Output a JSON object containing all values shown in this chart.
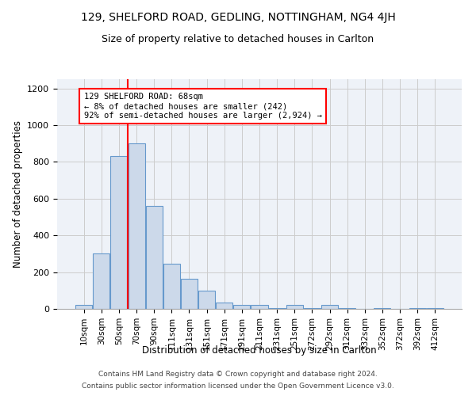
{
  "title1": "129, SHELFORD ROAD, GEDLING, NOTTINGHAM, NG4 4JH",
  "title2": "Size of property relative to detached houses in Carlton",
  "xlabel": "Distribution of detached houses by size in Carlton",
  "ylabel": "Number of detached properties",
  "bar_labels": [
    "10sqm",
    "30sqm",
    "50sqm",
    "70sqm",
    "90sqm",
    "111sqm",
    "131sqm",
    "151sqm",
    "171sqm",
    "191sqm",
    "211sqm",
    "231sqm",
    "251sqm",
    "272sqm",
    "292sqm",
    "312sqm",
    "332sqm",
    "352sqm",
    "372sqm",
    "392sqm",
    "412sqm"
  ],
  "bar_heights": [
    20,
    300,
    830,
    900,
    560,
    245,
    165,
    100,
    35,
    20,
    20,
    5,
    20,
    5,
    20,
    5,
    0,
    5,
    0,
    3,
    3
  ],
  "bar_color": "#ccd9ea",
  "bar_edge_color": "#6699cc",
  "vline_color": "red",
  "vline_x": 2.5,
  "annotation_text": "129 SHELFORD ROAD: 68sqm\n← 8% of detached houses are smaller (242)\n92% of semi-detached houses are larger (2,924) →",
  "annotation_box_color": "white",
  "annotation_box_edge_color": "red",
  "ylim": [
    0,
    1250
  ],
  "yticks": [
    0,
    200,
    400,
    600,
    800,
    1000,
    1200
  ],
  "grid_color": "#cccccc",
  "bg_color": "#eef2f8",
  "footer1": "Contains HM Land Registry data © Crown copyright and database right 2024.",
  "footer2": "Contains public sector information licensed under the Open Government Licence v3.0."
}
